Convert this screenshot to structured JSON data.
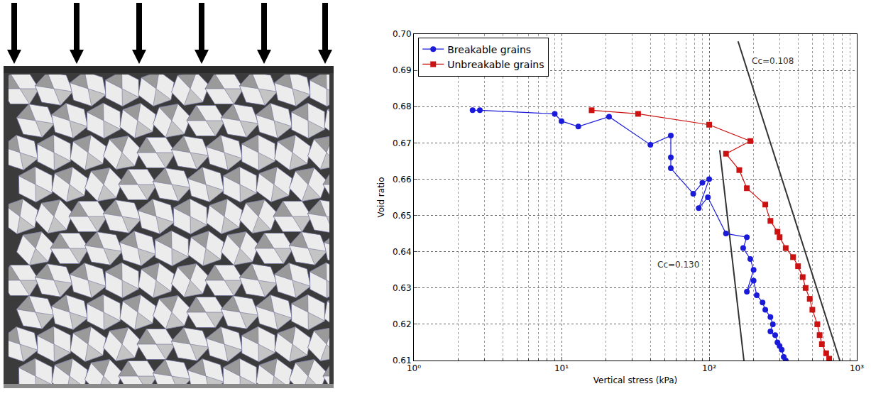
{
  "chart_data": {
    "type": "line",
    "x_label": "Vertical stress (kPa)",
    "y_label": "Void ratio",
    "log": "x",
    "grid": true,
    "legend": "upper left",
    "xlim": [
      1,
      1000
    ],
    "xticks": [
      {
        "value": 1,
        "label": "10⁰"
      },
      {
        "value": 10,
        "label": "10¹"
      },
      {
        "value": 100,
        "label": "10²"
      },
      {
        "value": 1000,
        "label": "10³"
      }
    ],
    "ylim": [
      0.61,
      0.7
    ],
    "yticks": [
      0.61,
      0.62,
      0.63,
      0.64,
      0.65,
      0.66,
      0.67,
      0.68,
      0.69,
      {
        "value": 0.7,
        "label": "0.70"
      }
    ],
    "series": [
      {
        "name": "Breakable grains",
        "color": "#1a1adb",
        "marker": "circle",
        "line_style": "solid",
        "x": [
          2.5,
          2.8,
          9,
          10,
          13,
          21,
          40,
          55,
          55,
          55,
          78,
          90,
          100,
          85,
          98,
          130,
          180,
          170,
          190,
          200,
          180,
          200,
          210,
          230,
          240,
          260,
          270,
          260,
          280,
          290,
          300,
          310,
          320,
          330
        ],
        "values": [
          0.679,
          0.679,
          0.678,
          0.676,
          0.6745,
          0.6772,
          0.6695,
          0.672,
          0.666,
          0.663,
          0.656,
          0.659,
          0.66,
          0.652,
          0.655,
          0.645,
          0.644,
          0.641,
          0.638,
          0.635,
          0.629,
          0.632,
          0.628,
          0.626,
          0.624,
          0.622,
          0.62,
          0.618,
          0.617,
          0.615,
          0.614,
          0.613,
          0.611,
          0.61
        ]
      },
      {
        "name": "Unbreakable grains",
        "color": "#cc1111",
        "marker": "square",
        "line_style": "solid",
        "x": [
          16,
          33,
          100,
          190,
          130,
          160,
          180,
          240,
          260,
          290,
          300,
          330,
          370,
          400,
          430,
          450,
          480,
          500,
          540,
          560,
          580,
          620,
          650
        ],
        "values": [
          0.679,
          0.678,
          0.675,
          0.6705,
          0.667,
          0.6625,
          0.6575,
          0.653,
          0.6485,
          0.6455,
          0.644,
          0.641,
          0.6385,
          0.636,
          0.633,
          0.63,
          0.627,
          0.624,
          0.62,
          0.617,
          0.6145,
          0.612,
          0.6105
        ]
      }
    ],
    "fit_lines": [
      {
        "label": "Cc=0.108",
        "color": "#333333",
        "x": [
          157,
          767
        ],
        "values": [
          0.698,
          0.61
        ],
        "label_x": 270,
        "label_y": 0.6925
      },
      {
        "label": "Cc=0.130",
        "color": "#333333",
        "x": [
          118,
          172
        ],
        "values": [
          0.668,
          0.61
        ],
        "label_x": 62,
        "label_y": 0.6365
      }
    ]
  }
}
